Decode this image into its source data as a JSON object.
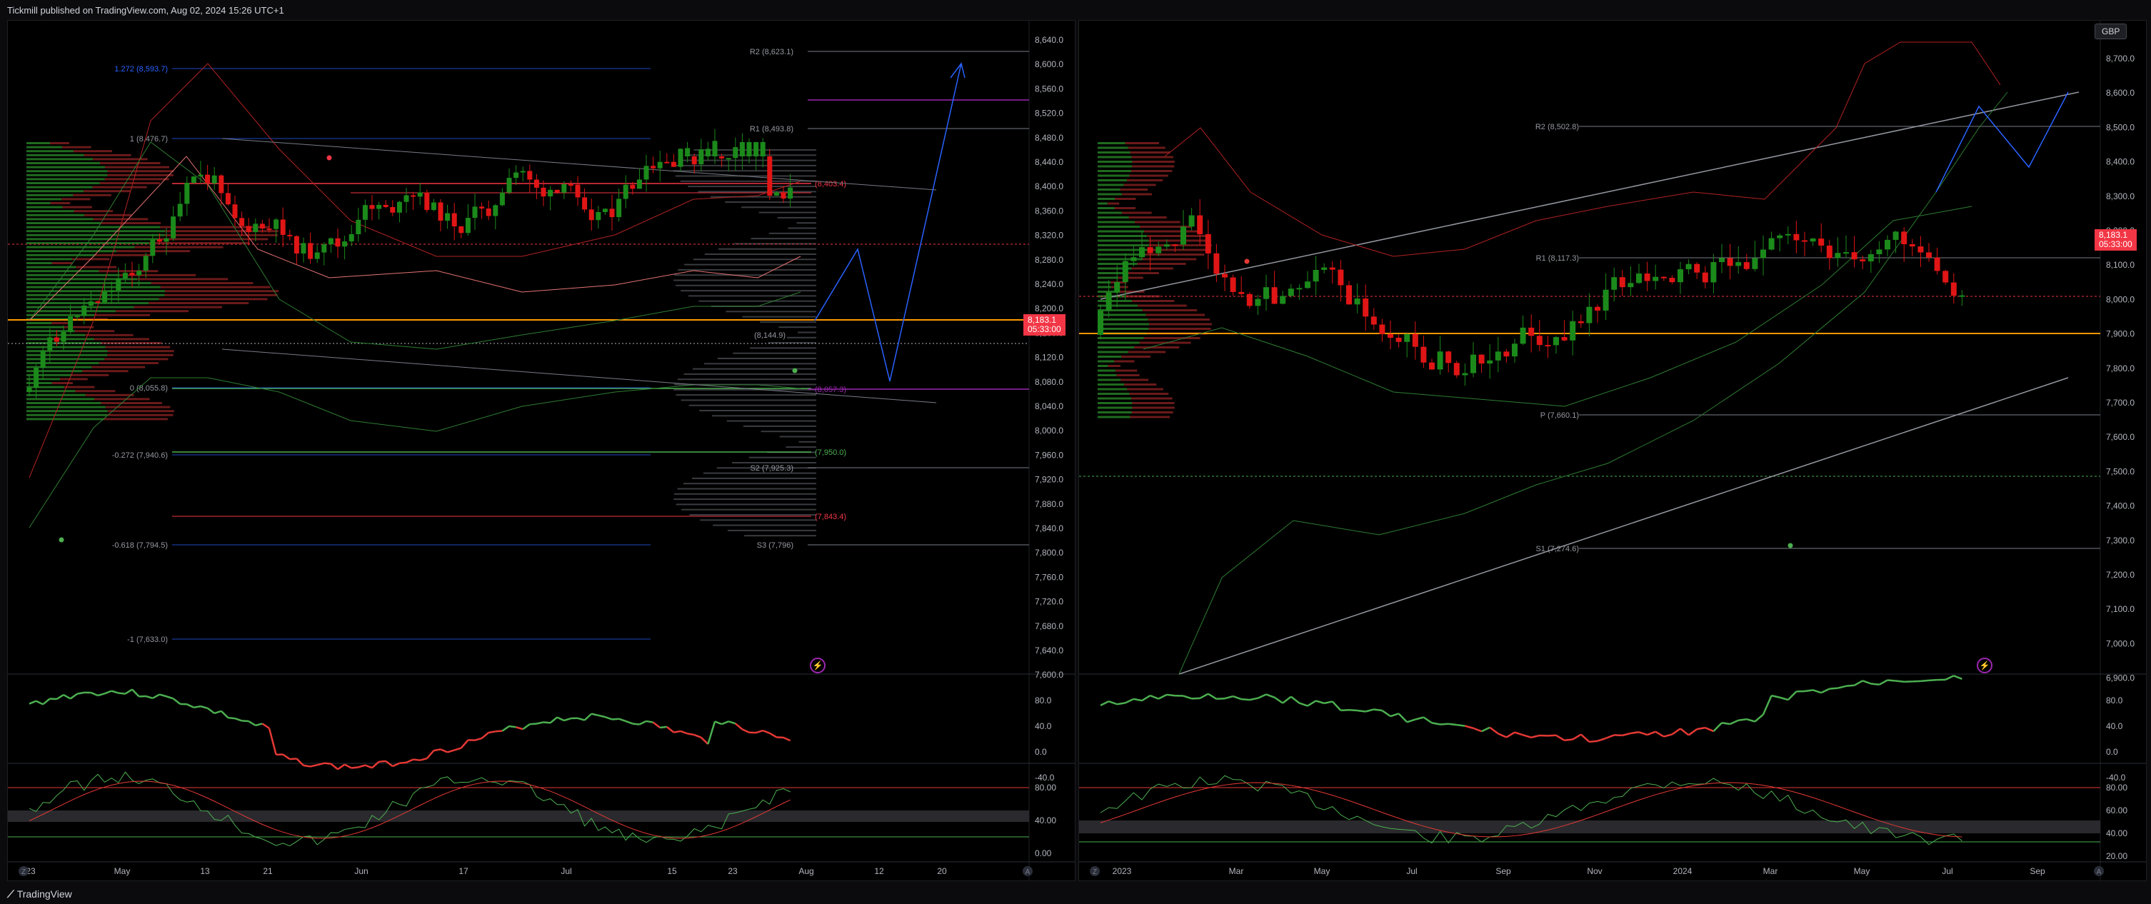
{
  "header": {
    "published": "Tickmill published on TradingView.com, Aug 02, 2024 15:26 UTC+1"
  },
  "footer": {
    "brand": "TradingView",
    "brand_icon": "tradingview-logo-icon"
  },
  "colors": {
    "bull": "#1b8a1b",
    "bear": "#e01515",
    "badge": "#f23645",
    "poc": "#ff9800",
    "fib": "#2962ff",
    "pivot": "#787b86"
  },
  "left_chart": {
    "price_axis": [
      "8,640.0",
      "8,600.0",
      "8,560.0",
      "8,520.0",
      "8,480.0",
      "8,440.0",
      "8,400.0",
      "8,360.0",
      "8,320.0",
      "8,280.0",
      "8,240.0",
      "8,200.0",
      "8,160.0",
      "8,120.0",
      "8,080.0",
      "8,040.0",
      "8,000.0",
      "7,960.0",
      "7,920.0",
      "7,880.0",
      "7,840.0",
      "7,800.0",
      "7,760.0",
      "7,720.0",
      "7,680.0",
      "7,640.0",
      "7,600.0"
    ],
    "time_axis": [
      "23",
      "May",
      "13",
      "21",
      "Jun",
      "17",
      "Jul",
      "15",
      "23",
      "Aug",
      "12",
      "20"
    ],
    "fib_labels": [
      "1.272 (8,593.7)",
      "1 (8,476.7)",
      "0 (8,055.8)",
      "-0.272 (7,940.6)",
      "-0.618 (7,794.5)",
      "-1 (7,633.0)"
    ],
    "pivot_labels": [
      "R2 (8,623.1)",
      "R1 (8,493.8)",
      "S2 (7,925.3)",
      "S3 (7,796)"
    ],
    "other_labels": [
      "(8,403.4)",
      "(8,144.9)",
      "(8,057.3)",
      "(7,950.0)",
      "(7,843.4)"
    ],
    "price_badge": {
      "price": "8,183.1",
      "countdown": "05:33:00"
    },
    "rsi_axis": [
      "80.0",
      "40.0",
      "0.0",
      "-40.0"
    ],
    "stoch_axis": [
      "80.00",
      "40.00",
      "0.00"
    ],
    "bottom_icons": [
      "Z",
      "A"
    ]
  },
  "right_chart": {
    "currency": "GBP",
    "price_axis": [
      "8,700.0",
      "8,600.0",
      "8,500.0",
      "8,400.0",
      "8,300.0",
      "8,200.0",
      "8,100.0",
      "8,000.0",
      "7,900.0",
      "7,800.0",
      "7,700.0",
      "7,600.0",
      "7,500.0",
      "7,400.0",
      "7,300.0",
      "7,200.0",
      "7,100.0",
      "7,000.0",
      "6,900.0"
    ],
    "time_axis": [
      "2023",
      "Mar",
      "May",
      "Jul",
      "Sep",
      "Nov",
      "2024",
      "Mar",
      "May",
      "Jul",
      "Sep"
    ],
    "pivot_labels": [
      "R2 (8,502.8)",
      "R1 (8,117.3)",
      "P (7,660.1)",
      "S1 (7,274.6)"
    ],
    "price_badge": {
      "price": "8,183.1",
      "countdown": "05:33:00"
    },
    "rsi_axis": [
      "80.0",
      "40.0",
      "0.0",
      "-40.0"
    ],
    "stoch_axis": [
      "80.00",
      "60.00",
      "40.00",
      "20.00"
    ],
    "bottom_icons": [
      "Z",
      "A"
    ]
  }
}
